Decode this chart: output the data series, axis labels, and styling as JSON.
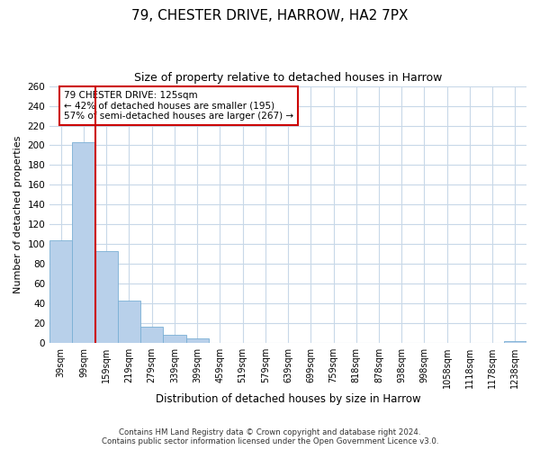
{
  "title1": "79, CHESTER DRIVE, HARROW, HA2 7PX",
  "title2": "Size of property relative to detached houses in Harrow",
  "xlabel": "Distribution of detached houses by size in Harrow",
  "ylabel": "Number of detached properties",
  "bar_labels": [
    "39sqm",
    "99sqm",
    "159sqm",
    "219sqm",
    "279sqm",
    "339sqm",
    "399sqm",
    "459sqm",
    "519sqm",
    "579sqm",
    "639sqm",
    "699sqm",
    "759sqm",
    "818sqm",
    "878sqm",
    "938sqm",
    "998sqm",
    "1058sqm",
    "1118sqm",
    "1178sqm",
    "1238sqm"
  ],
  "bar_values": [
    104,
    203,
    93,
    43,
    17,
    8,
    5,
    0,
    0,
    0,
    0,
    0,
    0,
    0,
    0,
    0,
    0,
    0,
    0,
    0,
    2
  ],
  "bar_color": "#b8d0ea",
  "bar_edge_color": "#7aafd4",
  "ylim": [
    0,
    260
  ],
  "yticks": [
    0,
    20,
    40,
    60,
    80,
    100,
    120,
    140,
    160,
    180,
    200,
    220,
    240,
    260
  ],
  "vline_x": 1.5,
  "vline_color": "#cc0000",
  "annotation_text": "79 CHESTER DRIVE: 125sqm\n← 42% of detached houses are smaller (195)\n57% of semi-detached houses are larger (267) →",
  "annotation_box_color": "#cc0000",
  "footer_line1": "Contains HM Land Registry data © Crown copyright and database right 2024.",
  "footer_line2": "Contains public sector information licensed under the Open Government Licence v3.0.",
  "background_color": "#ffffff",
  "grid_color": "#c8d8e8"
}
